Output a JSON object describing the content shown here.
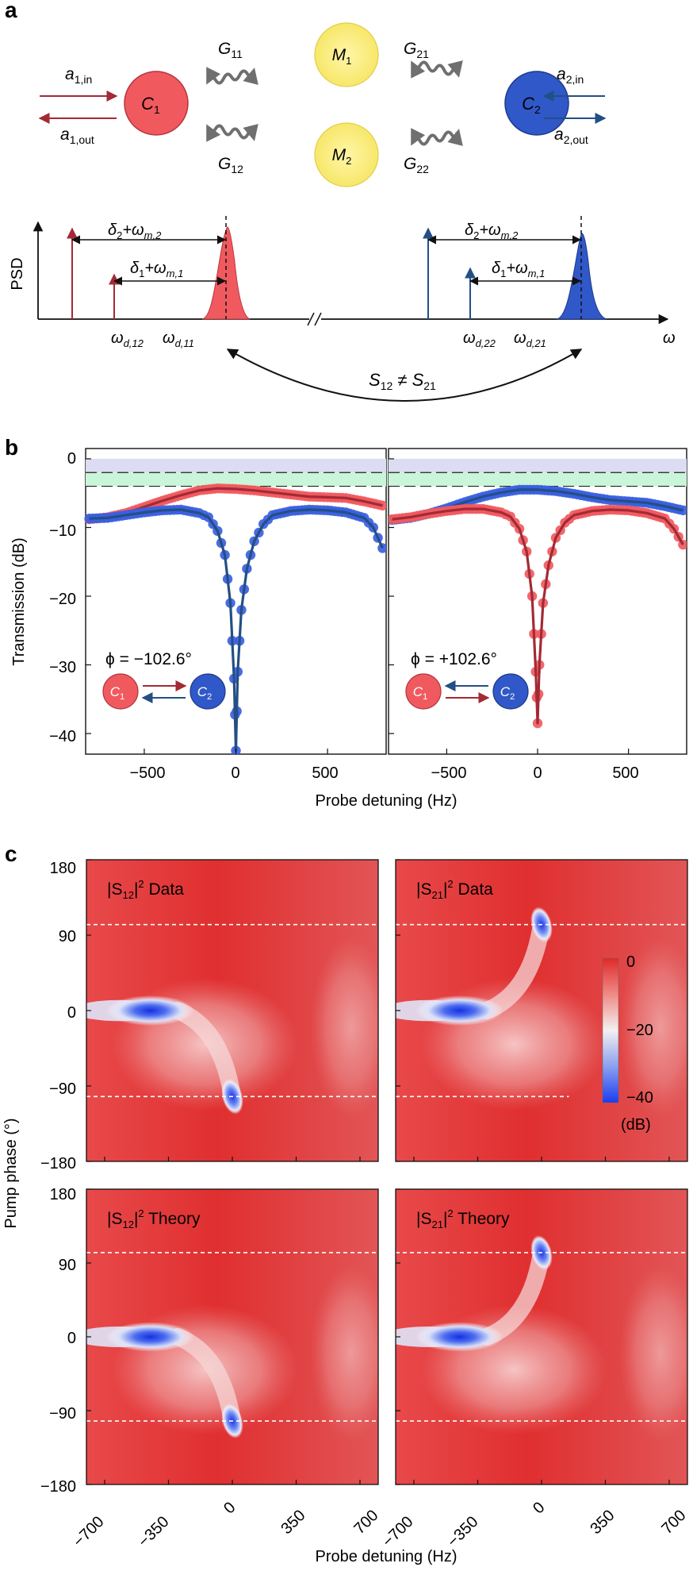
{
  "panel_a": {
    "label": "a",
    "cavity1": "C",
    "cavity1_sub": "1",
    "cavity2": "C",
    "cavity2_sub": "2",
    "mech1": "M",
    "mech1_sub": "1",
    "mech2": "M",
    "mech2_sub": "2",
    "g11": "G",
    "g11_sub": "11",
    "g21": "G",
    "g21_sub": "21",
    "g12": "G",
    "g12_sub": "12",
    "g22": "G",
    "g22_sub": "22",
    "a1in": "a",
    "a1in_sub": "1,in",
    "a1out": "a",
    "a1out_sub": "1,out",
    "a2in": "a",
    "a2in_sub": "2,in",
    "a2out": "a",
    "a2out_sub": "2,out",
    "psd_label": "PSD",
    "omega_label": "ω",
    "delta2_left": "δ",
    "delta2_left_sub": "2",
    "delta2_left_rest": "+ω",
    "delta2_left_rest_sub": "m,2",
    "delta1_left": "δ",
    "delta1_left_sub": "1",
    "delta1_left_rest": "+ω",
    "delta1_left_rest_sub": "m,1",
    "delta2_right": "δ",
    "delta2_right_sub": "2",
    "delta2_right_rest": "+ω",
    "delta2_right_rest_sub": "m,2",
    "delta1_right": "δ",
    "delta1_right_sub": "1",
    "delta1_right_rest": "+ω",
    "delta1_right_rest_sub": "m,1",
    "wd12": "ω",
    "wd12_sub": "d,12",
    "wd11": "ω",
    "wd11_sub": "d,11",
    "wd22": "ω",
    "wd22_sub": "d,22",
    "wd21": "ω",
    "wd21_sub": "d,21",
    "s_relation": "S",
    "s_relation_sub1": "12",
    "s_relation_mid": " ≠ S",
    "s_relation_sub2": "21",
    "colors": {
      "cavity1": "#f05a5f",
      "cavity2": "#3058c8",
      "mech": "#fbef86",
      "red_line": "#a32a35",
      "blue_line": "#234f84",
      "coupling": "#6f6f6f"
    }
  },
  "panel_b": {
    "label": "b",
    "ylabel": "Transmission (dB)",
    "xlabel": "Probe detuning (Hz)",
    "left_phase": "ϕ = −102.6°",
    "right_phase": "ϕ = +102.6°",
    "c1": "C",
    "c1_sub": "1",
    "c2": "C",
    "c2_sub": "2",
    "yticks": [
      "0",
      "−10",
      "−20",
      "−30",
      "−40"
    ],
    "xticks": [
      "−500",
      "0",
      "500"
    ]
  },
  "chart_data": [
    {
      "type": "scatter",
      "panel": "b-left",
      "xlabel": "Probe detuning (Hz)",
      "ylabel": "Transmission (dB)",
      "xlim": [
        -820,
        820
      ],
      "ylim": [
        -43,
        1.5
      ],
      "series": [
        {
          "color": "#f05a5f",
          "curve_color": "#a32a35",
          "x": [
            -800,
            -700,
            -600,
            -500,
            -400,
            -300,
            -200,
            -100,
            0,
            100,
            200,
            300,
            400,
            500,
            600,
            700,
            800
          ],
          "y": [
            -8.8,
            -8.5,
            -7.9,
            -7.0,
            -6.1,
            -5.3,
            -4.6,
            -4.3,
            -4.4,
            -4.6,
            -4.9,
            -5.2,
            -5.5,
            -5.6,
            -5.7,
            -6.2,
            -6.8
          ]
        },
        {
          "color": "#3b5fe0",
          "curve_color": "#234f84",
          "x": [
            -800,
            -700,
            -600,
            -500,
            -400,
            -300,
            -200,
            -150,
            -100,
            -60,
            -30,
            -10,
            0,
            10,
            30,
            60,
            100,
            150,
            200,
            300,
            400,
            500,
            600,
            700,
            750,
            800
          ],
          "y": [
            -8.7,
            -8.6,
            -8.2,
            -7.8,
            -7.5,
            -7.4,
            -7.9,
            -8.5,
            -10.5,
            -14,
            -21,
            -32,
            -42.5,
            -31,
            -22,
            -16,
            -12,
            -9.5,
            -8.2,
            -7.6,
            -7.4,
            -7.5,
            -7.8,
            -8.6,
            -10,
            -13
          ]
        }
      ],
      "bands": [
        [
          -4,
          -2
        ],
        [
          -2,
          0
        ]
      ]
    },
    {
      "type": "scatter",
      "panel": "b-right",
      "xlabel": "Probe detuning (Hz)",
      "ylabel": "Transmission (dB)",
      "xlim": [
        -820,
        820
      ],
      "ylim": [
        -43,
        1.5
      ],
      "series": [
        {
          "color": "#3b5fe0",
          "curve_color": "#234f84",
          "x": [
            -800,
            -700,
            -600,
            -500,
            -400,
            -300,
            -200,
            -100,
            0,
            100,
            200,
            300,
            400,
            500,
            600,
            700,
            800
          ],
          "y": [
            -8.9,
            -8.6,
            -8.0,
            -7.2,
            -6.3,
            -5.5,
            -4.9,
            -4.5,
            -4.5,
            -4.7,
            -5.1,
            -5.6,
            -6.0,
            -6.2,
            -6.4,
            -6.9,
            -7.5
          ]
        },
        {
          "color": "#f05a5f",
          "curve_color": "#a32a35",
          "x": [
            -800,
            -700,
            -600,
            -500,
            -400,
            -300,
            -200,
            -150,
            -100,
            -60,
            -30,
            -10,
            0,
            10,
            30,
            60,
            100,
            150,
            200,
            300,
            400,
            500,
            600,
            700,
            750,
            800
          ],
          "y": [
            -8.8,
            -8.5,
            -8.0,
            -7.6,
            -7.3,
            -7.3,
            -7.8,
            -8.4,
            -10.2,
            -13.5,
            -20,
            -31,
            -38.5,
            -30,
            -21,
            -15.5,
            -11.5,
            -9.3,
            -8.2,
            -7.6,
            -7.4,
            -7.5,
            -7.9,
            -8.7,
            -10.2,
            -12.5
          ]
        }
      ],
      "bands": [
        [
          -4,
          -2
        ],
        [
          -2,
          0
        ]
      ]
    },
    {
      "type": "heatmap",
      "panel": "c",
      "xlabel": "Probe detuning (Hz)",
      "ylabel": "Pump phase (°)",
      "xlim": [
        -800,
        800
      ],
      "ylim": [
        -180,
        180
      ],
      "colorbar": {
        "ticks": [
          "0",
          "−20",
          "−40"
        ],
        "unit": "(dB)",
        "range": [
          -40,
          0
        ]
      },
      "maps": [
        {
          "title": "|S",
          "sub": "12",
          "sup": "2",
          "suffix": " Data",
          "minima": [
            {
              "x": -450,
              "y": 0,
              "depth": -40
            },
            {
              "x": 0,
              "y": -102.6,
              "depth": -40
            }
          ],
          "dashed_lines": [
            102.6,
            -102.6
          ]
        },
        {
          "title": "|S",
          "sub": "21",
          "sup": "2",
          "suffix": " Data",
          "minima": [
            {
              "x": -450,
              "y": 0,
              "depth": -40
            },
            {
              "x": 0,
              "y": 102.6,
              "depth": -40
            }
          ],
          "dashed_lines": [
            102.6,
            -102.6
          ]
        },
        {
          "title": "|S",
          "sub": "12",
          "sup": "2",
          "suffix": " Theory",
          "minima": [
            {
              "x": -450,
              "y": 0,
              "depth": -40
            },
            {
              "x": 0,
              "y": -102.6,
              "depth": -40
            }
          ],
          "dashed_lines": [
            102.6,
            -102.6
          ]
        },
        {
          "title": "|S",
          "sub": "21",
          "sup": "2",
          "suffix": " Theory",
          "minima": [
            {
              "x": -450,
              "y": 0,
              "depth": -40
            },
            {
              "x": 0,
              "y": 102.6,
              "depth": -40
            }
          ],
          "dashed_lines": [
            102.6,
            -102.6
          ]
        }
      ]
    }
  ],
  "panel_c": {
    "label": "c",
    "ylabel": "Pump phase (°)",
    "xlabel": "Probe detuning (Hz)",
    "yticks": [
      "180",
      "90",
      "0",
      "−90",
      "−180"
    ],
    "xticks": [
      "−700",
      "−350",
      "0",
      "350",
      "700"
    ],
    "cbar_ticks": [
      "0",
      "−20",
      "−40"
    ],
    "cbar_unit": "(dB)"
  }
}
